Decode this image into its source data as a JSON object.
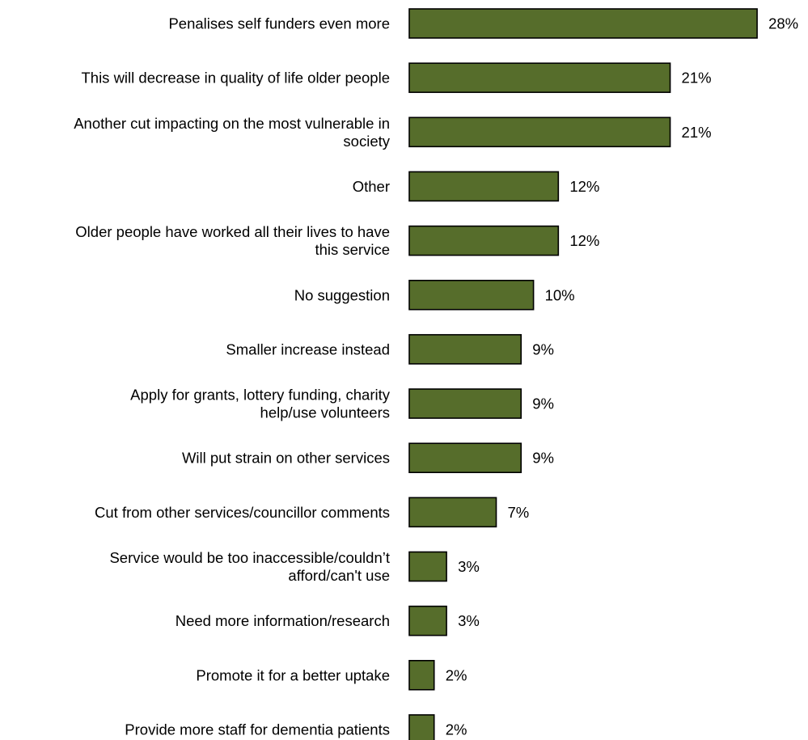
{
  "chart_data": {
    "type": "bar",
    "orientation": "horizontal",
    "categories": [
      "Penalises self funders even more",
      "This will decrease in quality of life older people",
      "Another cut impacting on the most vulnerable in society",
      "Other",
      "Older people have worked all their lives to have this service",
      "No suggestion",
      "Smaller increase instead",
      "Apply for grants, lottery funding, charity help/use volunteers",
      "Will put strain on other services",
      "Cut from other services/councillor comments",
      "Service would be too inaccessible/couldn’t afford/can't use",
      "Need more information/research",
      "Promote it for a better uptake",
      "Provide more staff for dementia patients"
    ],
    "category_lines": [
      [
        "Penalises self funders even more"
      ],
      [
        "This will decrease in quality of life older people"
      ],
      [
        "Another cut impacting on the most vulnerable in",
        "society"
      ],
      [
        "Other"
      ],
      [
        "Older people have worked all their lives to have",
        "this service"
      ],
      [
        "No suggestion"
      ],
      [
        "Smaller increase instead"
      ],
      [
        "Apply for grants, lottery funding, charity",
        "help/use volunteers"
      ],
      [
        "Will put strain on other services"
      ],
      [
        "Cut from other services/councillor comments"
      ],
      [
        "Service would be too inaccessible/couldn’t",
        "afford/can't use"
      ],
      [
        "Need more information/research"
      ],
      [
        "Promote it for a better uptake"
      ],
      [
        "Provide more staff for dementia patients"
      ]
    ],
    "values": [
      28,
      21,
      21,
      12,
      12,
      10,
      9,
      9,
      9,
      7,
      3,
      3,
      2,
      2
    ],
    "value_labels": [
      "28%",
      "21%",
      "21%",
      "12%",
      "12%",
      "10%",
      "9%",
      "9%",
      "9%",
      "7%",
      "3%",
      "3%",
      "2%",
      "2%"
    ],
    "unit": "%",
    "bar_color": "#566d2b",
    "grid": false,
    "legend": "none",
    "title": "",
    "xlabel": "",
    "ylabel": ""
  }
}
